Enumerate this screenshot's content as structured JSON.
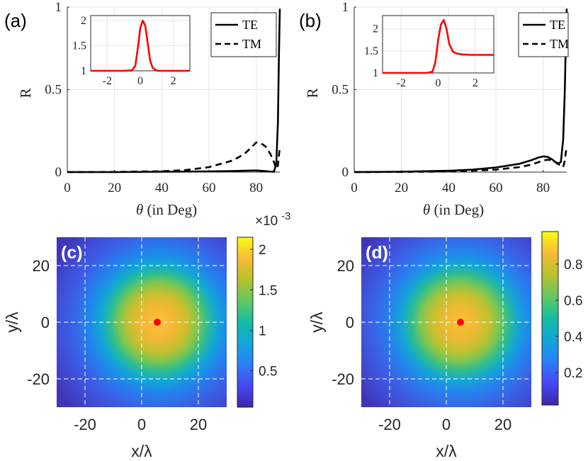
{
  "chart_data": [
    {
      "panel": "(a)",
      "type": "line",
      "xlabel": "θ  (in Deg)",
      "ylabel": "R",
      "xlim": [
        0,
        90
      ],
      "ylim": [
        0,
        1
      ],
      "xticks": [
        0,
        20,
        40,
        60,
        80
      ],
      "yticks": [
        0,
        0.5,
        1
      ],
      "xtick_labels": [
        "0",
        "20",
        "40",
        "60",
        "80"
      ],
      "ytick_labels": [
        "0",
        "0.5",
        "1"
      ],
      "grid": true,
      "legend": "top-right",
      "series": [
        {
          "name": "TE",
          "style": "solid",
          "x": [
            0,
            20,
            40,
            60,
            70,
            75,
            80,
            83,
            86,
            87.5,
            88.5,
            89.2,
            89.6,
            90
          ],
          "y": [
            0,
            0,
            0.002,
            0.004,
            0.006,
            0.008,
            0.01,
            0.007,
            0.003,
            0.002,
            0.05,
            0.3,
            0.7,
            0.99
          ]
        },
        {
          "name": "TM",
          "style": "dashed",
          "x": [
            0,
            20,
            40,
            50,
            60,
            70,
            75,
            78,
            80,
            82,
            84,
            86,
            87.5,
            88.5,
            89.2,
            89.6,
            90
          ],
          "y": [
            0,
            0.001,
            0.005,
            0.012,
            0.03,
            0.07,
            0.11,
            0.15,
            0.18,
            0.175,
            0.155,
            0.11,
            0.06,
            0.02,
            0.04,
            0.1,
            0.15
          ]
        }
      ],
      "inset": {
        "xlim": [
          -3,
          3
        ],
        "ylim": [
          1,
          2.1
        ],
        "xticks": [
          -2,
          0,
          2
        ],
        "yticks": [
          1,
          1.5,
          2
        ],
        "xtick_labels": [
          "-2",
          "0",
          "2"
        ],
        "ytick_labels": [
          "1",
          "1.5",
          "2"
        ],
        "color": "#ff0000",
        "x": [
          -3,
          -1,
          -0.5,
          -0.3,
          -0.15,
          0,
          0.15,
          0.3,
          0.45,
          0.6,
          0.75,
          0.9,
          1.1,
          1.5,
          3
        ],
        "y": [
          1,
          1,
          1.01,
          1.1,
          1.45,
          1.85,
          2.0,
          1.9,
          1.55,
          1.2,
          1.06,
          1.02,
          1.0,
          1.0,
          1.0
        ]
      }
    },
    {
      "panel": "(b)",
      "type": "line",
      "xlabel": "θ  (in Deg)",
      "ylabel": "R",
      "xlim": [
        0,
        90
      ],
      "ylim": [
        0,
        1
      ],
      "xticks": [
        0,
        20,
        40,
        60,
        80
      ],
      "yticks": [
        0,
        0.5,
        1
      ],
      "xtick_labels": [
        "0",
        "20",
        "40",
        "60",
        "80"
      ],
      "ytick_labels": [
        "0",
        "0.5",
        "1"
      ],
      "grid": true,
      "legend": "top-right",
      "series": [
        {
          "name": "TE",
          "style": "solid",
          "x": [
            0,
            20,
            40,
            50,
            60,
            70,
            75,
            78,
            80,
            82,
            84,
            86,
            87.5,
            88.5,
            89.2,
            89.6,
            90
          ],
          "y": [
            0,
            0.002,
            0.008,
            0.015,
            0.028,
            0.05,
            0.072,
            0.088,
            0.095,
            0.092,
            0.075,
            0.05,
            0.06,
            0.2,
            0.5,
            0.8,
            0.99
          ]
        },
        {
          "name": "TM",
          "style": "dashed",
          "x": [
            0,
            20,
            40,
            50,
            60,
            70,
            75,
            78,
            80,
            82,
            84,
            86,
            87.5,
            88.5,
            89.2,
            89.6,
            90
          ],
          "y": [
            0,
            0.001,
            0.004,
            0.008,
            0.015,
            0.03,
            0.045,
            0.06,
            0.07,
            0.075,
            0.07,
            0.055,
            0.035,
            0.03,
            0.07,
            0.12,
            0.15
          ]
        }
      ],
      "inset": {
        "xlim": [
          -3,
          3
        ],
        "ylim": [
          1,
          2.3
        ],
        "xticks": [
          -2,
          0,
          2
        ],
        "yticks": [
          1,
          1.5,
          2
        ],
        "xtick_labels": [
          "-2",
          "0",
          "2"
        ],
        "ytick_labels": [
          "1",
          "1.5",
          "2"
        ],
        "color": "#ff0000",
        "x": [
          -3,
          -0.6,
          -0.3,
          -0.15,
          0,
          0.15,
          0.3,
          0.45,
          0.6,
          0.8,
          1.0,
          1.3,
          1.8,
          3
        ],
        "y": [
          1,
          1,
          1.03,
          1.25,
          1.75,
          2.1,
          2.2,
          2.0,
          1.65,
          1.48,
          1.44,
          1.42,
          1.41,
          1.41
        ]
      }
    },
    {
      "panel": "(c)",
      "type": "heatmap",
      "xlabel": "x/λ",
      "ylabel": "y/λ",
      "xlim": [
        -30,
        30
      ],
      "ylim": [
        -30,
        30
      ],
      "xticks": [
        -20,
        0,
        20
      ],
      "yticks": [
        20,
        0,
        -20
      ],
      "xtick_labels": [
        "-20",
        "0",
        "20"
      ],
      "ytick_labels": [
        "20",
        "0",
        "-20"
      ],
      "grid": "dashed-white",
      "peak": {
        "x": 5.5,
        "y": 0,
        "marker_color": "#ff0000"
      },
      "colorbar": {
        "exponent_label": "×10",
        "exponent": "-3",
        "range": [
          0.05,
          2.15
        ],
        "ticks": [
          0.5,
          1,
          1.5,
          2
        ],
        "tick_labels": [
          "0.5",
          "1",
          "1.5",
          "2"
        ]
      }
    },
    {
      "panel": "(d)",
      "type": "heatmap",
      "xlabel": "x/λ",
      "ylabel": "y/λ",
      "xlim": [
        -30,
        30
      ],
      "ylim": [
        -30,
        30
      ],
      "xticks": [
        -20,
        0,
        20
      ],
      "yticks": [
        20,
        0,
        -20
      ],
      "xtick_labels": [
        "-20",
        "0",
        "20"
      ],
      "ytick_labels": [
        "20",
        "0",
        "-20"
      ],
      "grid": "dashed-white",
      "peak": {
        "x": 5,
        "y": 0,
        "marker_color": "#ff0000"
      },
      "colorbar": {
        "range": [
          0.02,
          0.98
        ],
        "ticks": [
          0.2,
          0.4,
          0.6,
          0.8
        ],
        "tick_labels": [
          "0.2",
          "0.4",
          "0.6",
          "0.8"
        ]
      }
    }
  ]
}
